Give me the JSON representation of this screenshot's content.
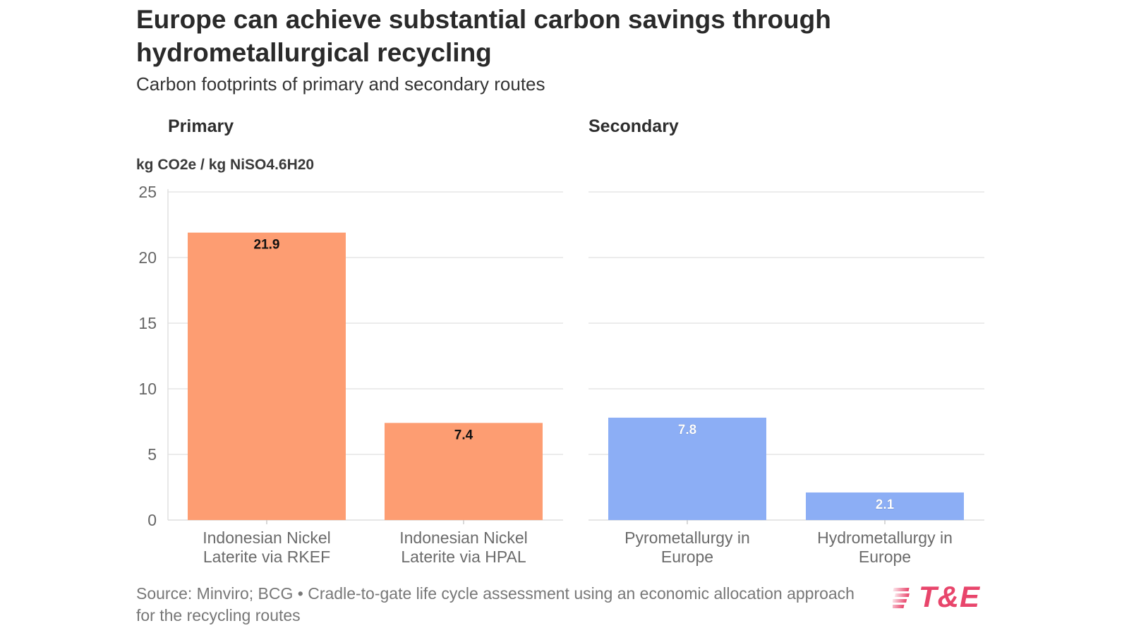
{
  "title": "Europe can achieve substantial carbon savings through hydrometallurgical recycling",
  "subtitle": "Carbon footprints of primary and secondary routes",
  "source": "Source: Minviro; BCG • Cradle-to-gate life cycle assessment using an economic allocation approach for the recycling routes",
  "logo_text": "T&E",
  "colors": {
    "primary": "#fd9d72",
    "secondary": "#8caef5",
    "grid": "#e6e6e6",
    "logo": "#e8456b"
  },
  "chart_data": {
    "type": "bar",
    "ylabel": "kg CO2e / kg NiSO4.6H20",
    "ylim": [
      0,
      25
    ],
    "yticks": [
      0,
      5,
      10,
      15,
      20,
      25
    ],
    "grid": true,
    "panels": [
      {
        "name": "Primary",
        "color": "#fd9d72",
        "categories": [
          [
            "Indonesian Nickel",
            "Laterite via RKEF"
          ],
          [
            "Indonesian Nickel",
            "Laterite via HPAL"
          ]
        ],
        "values": [
          21.9,
          7.4
        ],
        "labels": [
          "21.9",
          "7.4"
        ]
      },
      {
        "name": "Secondary",
        "color": "#8caef5",
        "categories": [
          [
            "Pyrometallurgy in",
            "Europe"
          ],
          [
            "Hydrometallurgy in",
            "Europe"
          ]
        ],
        "values": [
          7.8,
          2.1
        ],
        "labels": [
          "7.8",
          "2.1"
        ]
      }
    ]
  }
}
